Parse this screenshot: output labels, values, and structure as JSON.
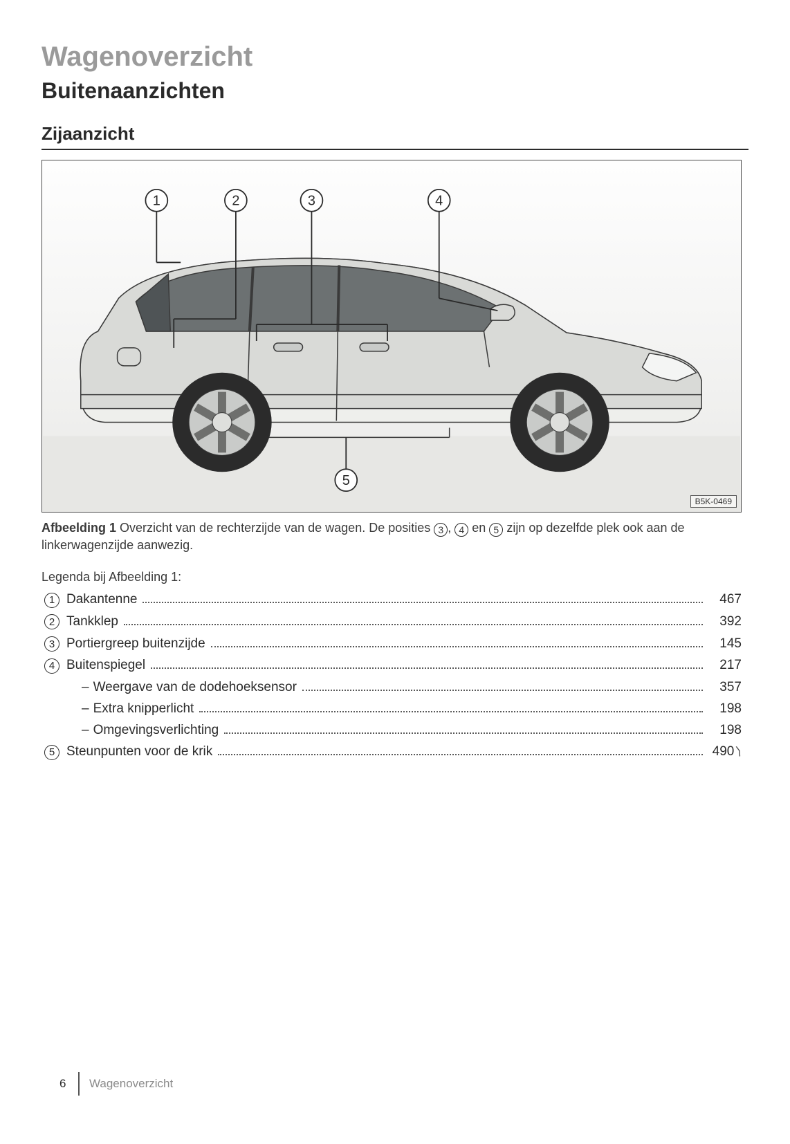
{
  "headings": {
    "h1": "Wagenoverzicht",
    "h2": "Buitenaanzichten",
    "h3": "Zijaanzicht"
  },
  "figure": {
    "code": "B5K-0469",
    "callouts": [
      "1",
      "2",
      "3",
      "4",
      "5"
    ],
    "caption_bold": "Afbeelding 1",
    "caption_rest_a": " Overzicht van de rechterzijde van de wagen. De posities ",
    "caption_rest_b": ", ",
    "caption_rest_c": " en ",
    "caption_rest_d": " zijn op dezelfde plek ook aan de linkerwagenzijde aanwezig.",
    "caption_ref1": "3",
    "caption_ref2": "4",
    "caption_ref3": "5",
    "colors": {
      "car_body": "#d9dad7",
      "car_body_hi": "#eeefec",
      "glass": "#6c7172",
      "glass_dark": "#4f5456",
      "tire": "#2b2b2b",
      "rim": "#c9cbc9",
      "outline": "#3a3a3a",
      "ground": "#e7e7e4"
    }
  },
  "legend_intro": "Legenda bij Afbeelding 1:",
  "legend": [
    {
      "num": "1",
      "label": "Dakantenne",
      "page": "467"
    },
    {
      "num": "2",
      "label": "Tankklep",
      "page": "392"
    },
    {
      "num": "3",
      "label": "Portiergreep buitenzijde",
      "page": "145"
    },
    {
      "num": "4",
      "label": "Buitenspiegel",
      "page": "217",
      "sub": [
        {
          "label": "Weergave van de dodehoeksensor",
          "page": "357"
        },
        {
          "label": "Extra knipperlicht",
          "page": "198"
        },
        {
          "label": "Omgevingsverlichting",
          "page": "198"
        }
      ]
    },
    {
      "num": "5",
      "label": "Steunpunten voor de krik",
      "page": "490",
      "cont": true
    }
  ],
  "footer": {
    "page": "6",
    "title": "Wagenoverzicht"
  }
}
